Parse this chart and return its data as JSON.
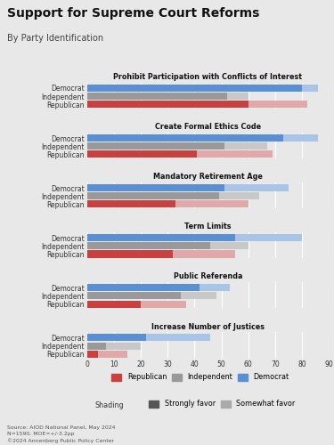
{
  "title": "Support for Supreme Court Reforms",
  "subtitle": "By Party Identification",
  "sections": [
    {
      "title": "Prohibit Participation with Conflicts of Interest",
      "strongly": [
        80,
        52,
        60
      ],
      "somewhat": [
        6,
        8,
        22
      ]
    },
    {
      "title": "Create Formal Ethics Code",
      "strongly": [
        73,
        51,
        41
      ],
      "somewhat": [
        13,
        16,
        28
      ]
    },
    {
      "title": "Mandatory Retirement Age",
      "strongly": [
        51,
        49,
        33
      ],
      "somewhat": [
        24,
        15,
        27
      ]
    },
    {
      "title": "Term Limits",
      "strongly": [
        55,
        46,
        32
      ],
      "somewhat": [
        25,
        14,
        23
      ]
    },
    {
      "title": "Public Referenda",
      "strongly": [
        42,
        35,
        20
      ],
      "somewhat": [
        11,
        13,
        17
      ]
    },
    {
      "title": "Increase Number of Justices",
      "strongly": [
        22,
        7,
        4
      ],
      "somewhat": [
        24,
        13,
        11
      ]
    }
  ],
  "group_labels": [
    "Democrat",
    "Independent",
    "Republican"
  ],
  "colors": {
    "democrat_strong": "#5b8fd4",
    "democrat_light": "#a8c4e8",
    "independent_strong": "#999999",
    "independent_light": "#c8c8c8",
    "republican_strong": "#c94040",
    "republican_light": "#e0a8a8"
  },
  "bg_color": "#e8e8e8",
  "grid_color": "#ffffff",
  "xlim": [
    0,
    90
  ],
  "xticks": [
    0,
    10,
    20,
    30,
    40,
    50,
    60,
    70,
    80,
    90
  ],
  "source_text": "Source: AIOD National Panel, May 2024\nN=1590, MOE=+/-3.2pp\n©2024 Annenberg Public Policy Center"
}
